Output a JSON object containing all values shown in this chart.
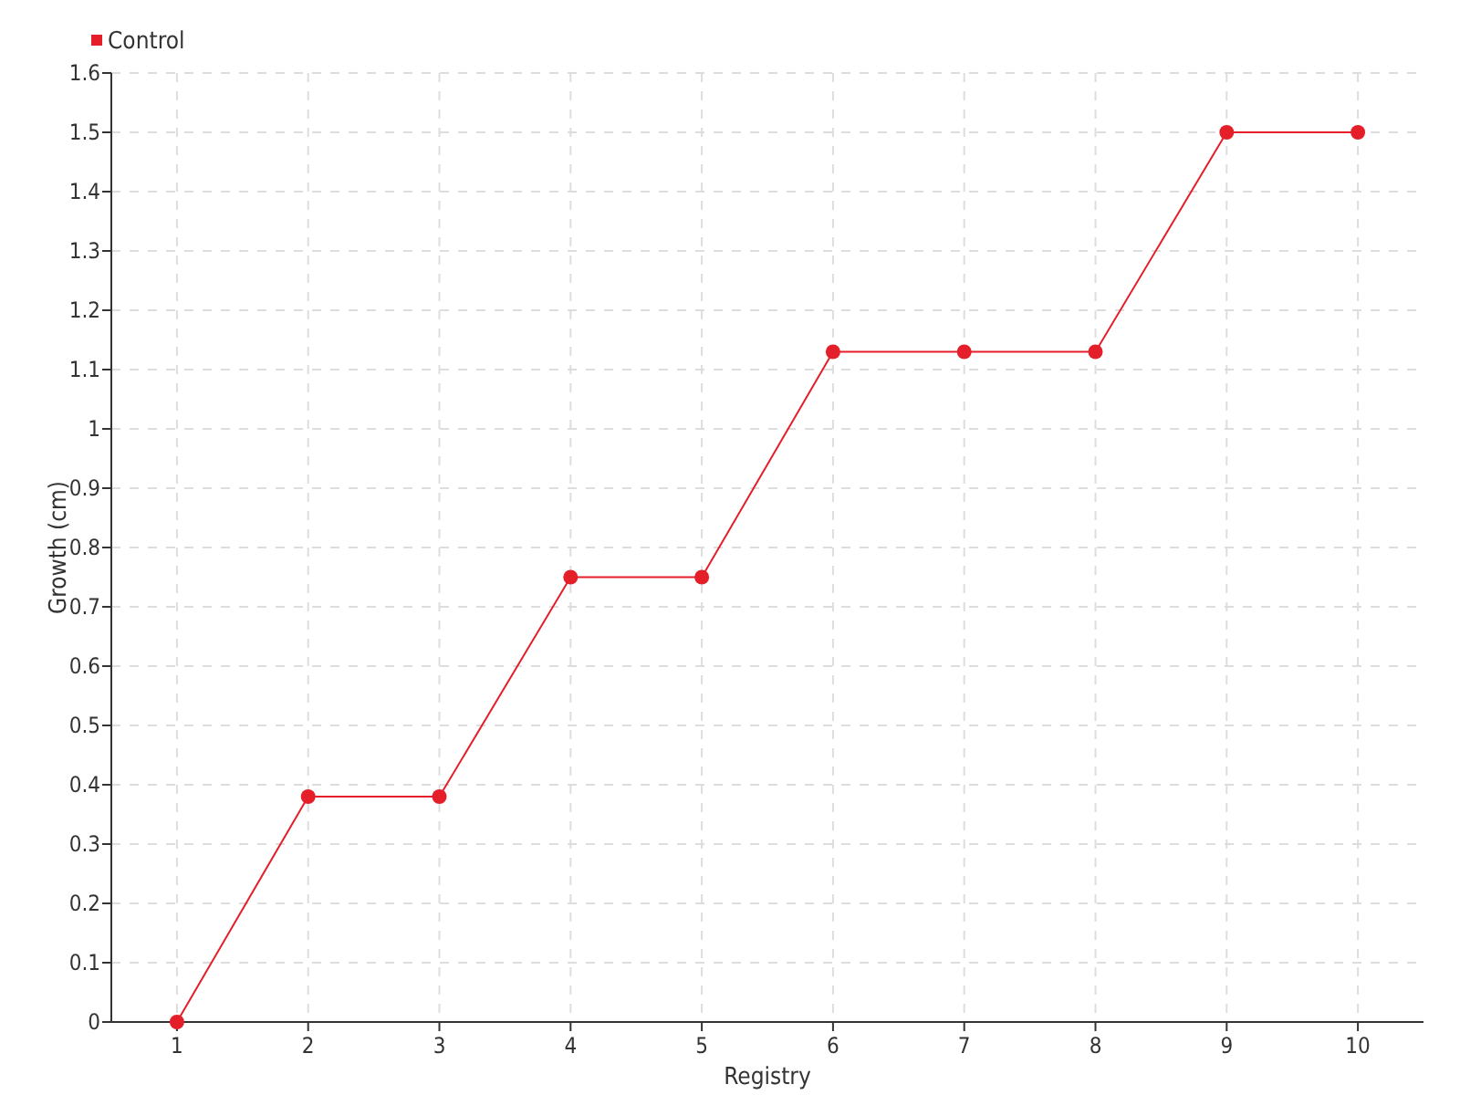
{
  "chart_data": {
    "type": "line",
    "xlabel": "Registry",
    "ylabel": "Growth (cm)",
    "categories": [
      "1",
      "2",
      "3",
      "4",
      "5",
      "6",
      "7",
      "8",
      "9",
      "10"
    ],
    "series": [
      {
        "name": "Control",
        "color": "#e41f2a",
        "values": [
          0,
          0.38,
          0.38,
          0.75,
          0.75,
          1.13,
          1.13,
          1.13,
          1.5,
          1.5
        ]
      }
    ],
    "ylim": [
      0,
      1.6
    ],
    "yticks": [
      0,
      0.1,
      0.2,
      0.3,
      0.4,
      0.5,
      0.6,
      0.7,
      0.8,
      0.9,
      1,
      1.1,
      1.2,
      1.3,
      1.4,
      1.5,
      1.6
    ],
    "grid": true,
    "legend": "top left",
    "marker": "circle",
    "line_style": "solid"
  }
}
